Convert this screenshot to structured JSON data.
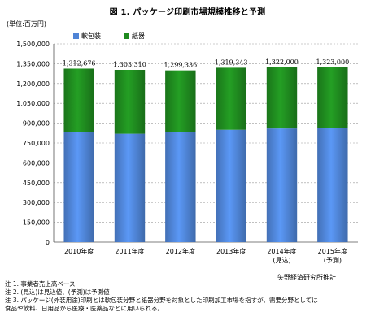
{
  "title": "図 1. パッケージ印刷市場規模推移と予測",
  "unit_label": "(単位:百万円)",
  "colors": {
    "series1": "#4f84d6",
    "series2": "#1f8a1f",
    "grid": "#9a9a9a",
    "axis": "#555555"
  },
  "chart_data": {
    "type": "bar",
    "stacked": true,
    "categories": [
      "2010年度",
      "2011年度",
      "2012年度",
      "2013年度",
      "2014年度\n(見込)",
      "2015年度\n(予測)"
    ],
    "series": [
      {
        "name": "軟包装",
        "values": [
          830000,
          820000,
          830000,
          850000,
          860000,
          865000
        ]
      },
      {
        "name": "紙器",
        "values": [
          482676,
          483310,
          469336,
          469343,
          462000,
          458000
        ]
      }
    ],
    "totals": [
      "1,312,676",
      "1,303,310",
      "1,299,336",
      "1,319,343",
      "1,322,000",
      "1,323,000"
    ],
    "ylim": [
      0,
      1500000
    ],
    "yticks": [
      0,
      150000,
      300000,
      450000,
      600000,
      750000,
      900000,
      1050000,
      1200000,
      1350000,
      1500000
    ],
    "ytick_labels": [
      "0",
      "150,000",
      "300,000",
      "450,000",
      "600,000",
      "750,000",
      "900,000",
      "1,050,000",
      "1,200,000",
      "1,350,000",
      "1,500,000"
    ],
    "grid": true,
    "legend_position": "top-left"
  },
  "source": "矢野経済研究所推計",
  "notes": [
    "注 1. 事業者売上高ベース",
    "注 2. (見込)は見込値、(予測)は予測値",
    "注 3. パッケージ(外装用途)印刷とは軟包装分野と紙器分野を対象とした印刷加工市場を指すが、需要分野としては",
    "食品や飲料、日用品から医療・医薬品などに用いられる。"
  ]
}
